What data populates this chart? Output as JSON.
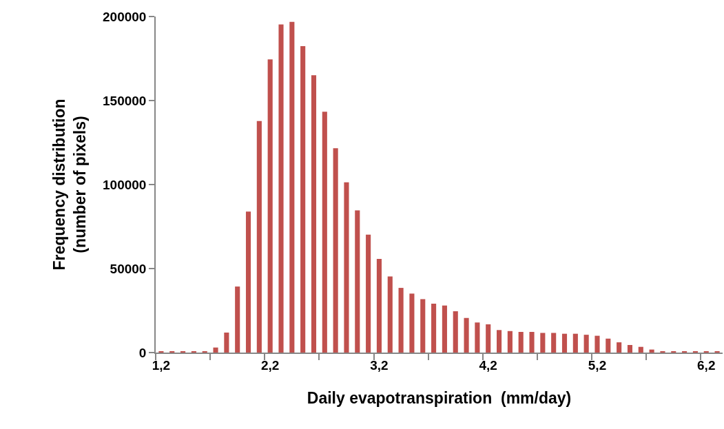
{
  "chart_data": {
    "type": "bar",
    "xlabel": "Daily evapotranspiration  (mm/day)",
    "ylabel": "Frequency distribution\n(number of pixels)",
    "categories": [
      "1,2",
      null,
      null,
      null,
      null,
      null,
      null,
      null,
      null,
      null,
      "2,2",
      null,
      null,
      null,
      null,
      null,
      null,
      null,
      null,
      null,
      "3,2",
      null,
      null,
      null,
      null,
      null,
      null,
      null,
      null,
      null,
      "4,2",
      null,
      null,
      null,
      null,
      null,
      null,
      null,
      null,
      null,
      "5,2",
      null,
      null,
      null,
      null,
      null,
      null,
      null,
      null,
      null,
      "6,2",
      null
    ],
    "values": [
      800,
      800,
      800,
      800,
      800,
      3000,
      11900,
      39300,
      83900,
      137800,
      174500,
      195300,
      196800,
      182400,
      165100,
      143300,
      121600,
      101300,
      84600,
      70200,
      55700,
      45300,
      38500,
      35100,
      31800,
      29100,
      28000,
      24600,
      20600,
      17900,
      16800,
      13400,
      12800,
      12300,
      12300,
      11700,
      11700,
      11200,
      11200,
      10600,
      10000,
      8300,
      6100,
      4500,
      3400,
      1800,
      700,
      700,
      700,
      700,
      700,
      700
    ],
    "color": "#c0504d",
    "ylim": [
      0,
      200000
    ],
    "yticks": [
      0,
      50000,
      100000,
      150000,
      200000
    ]
  }
}
